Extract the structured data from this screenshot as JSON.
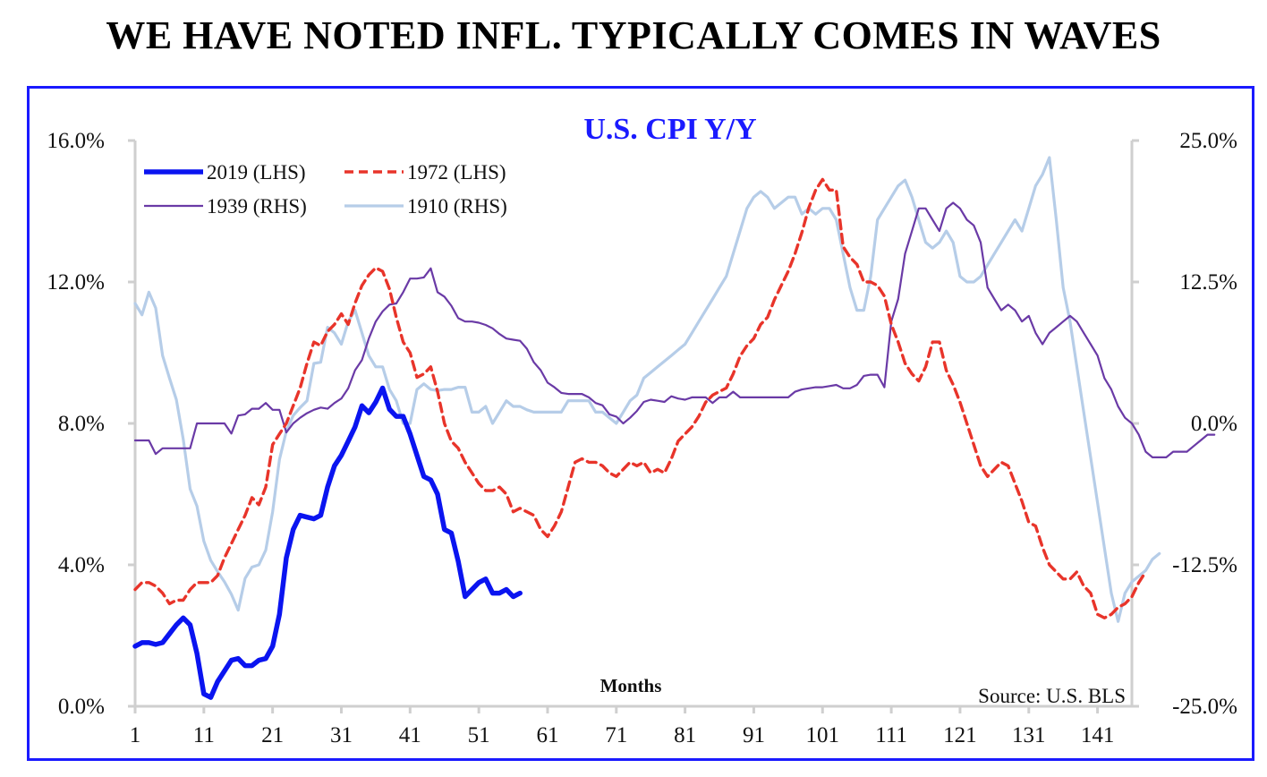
{
  "headline": "WE HAVE NOTED INFL. TYPICALLY COMES IN WAVES",
  "chart_data": {
    "type": "line",
    "title": "U.S. CPI Y/Y",
    "xlabel": "Months",
    "source": "Source: U.S. BLS",
    "x_ticks": [
      1,
      11,
      21,
      31,
      41,
      51,
      61,
      71,
      81,
      91,
      101,
      111,
      121,
      131,
      141
    ],
    "x_range": [
      1,
      146
    ],
    "left_axis": {
      "range": [
        0,
        16
      ],
      "ticks": [
        "0.0%",
        "4.0%",
        "8.0%",
        "12.0%",
        "16.0%"
      ],
      "tick_values": [
        0,
        4,
        8,
        12,
        16
      ]
    },
    "right_axis": {
      "range": [
        -25,
        25
      ],
      "ticks": [
        "-25.0%",
        "-12.5%",
        "0.0%",
        "12.5%",
        "25.0%"
      ],
      "tick_values": [
        -25,
        -12.5,
        0,
        12.5,
        25
      ]
    },
    "grid": false,
    "legend_placement": "top-left",
    "colors": {
      "s2019": "#0a14f0",
      "s1972": "#e8342a",
      "s1939": "#6a3aa6",
      "s1910": "#b6cde8",
      "frame": "#1a1aff",
      "title": "#1a1aff",
      "axis": "#cfcfcf"
    },
    "series": [
      {
        "name": "2019 (LHS)",
        "axis": "left",
        "style": "solid-thick",
        "start_x": 1,
        "values": [
          1.7,
          1.8,
          1.8,
          1.75,
          1.8,
          2.05,
          2.3,
          2.5,
          2.3,
          1.5,
          0.35,
          0.25,
          0.7,
          1.0,
          1.3,
          1.35,
          1.15,
          1.15,
          1.3,
          1.35,
          1.7,
          2.6,
          4.2,
          5.0,
          5.4,
          5.35,
          5.3,
          5.4,
          6.2,
          6.8,
          7.1,
          7.5,
          7.9,
          8.5,
          8.3,
          8.6,
          9.0,
          8.4,
          8.2,
          8.2,
          7.7,
          7.1,
          6.5,
          6.4,
          6.0,
          5.0,
          4.9,
          4.1,
          3.1,
          3.3,
          3.5,
          3.6,
          3.2,
          3.2,
          3.3,
          3.1,
          3.2
        ]
      },
      {
        "name": "1972 (LHS)",
        "axis": "left",
        "style": "dashed",
        "start_x": 1,
        "values": [
          3.3,
          3.5,
          3.5,
          3.4,
          3.2,
          2.9,
          3.0,
          3.0,
          3.3,
          3.5,
          3.5,
          3.5,
          3.7,
          4.2,
          4.6,
          5.0,
          5.4,
          5.9,
          5.7,
          6.2,
          7.4,
          7.7,
          8.0,
          8.5,
          9.0,
          9.7,
          10.3,
          10.2,
          10.6,
          10.8,
          11.1,
          10.8,
          11.4,
          11.9,
          12.2,
          12.4,
          12.3,
          11.8,
          11.0,
          10.3,
          10.0,
          9.3,
          9.4,
          9.6,
          8.9,
          8.0,
          7.5,
          7.3,
          6.9,
          6.6,
          6.3,
          6.1,
          6.1,
          6.2,
          6.0,
          5.5,
          5.6,
          5.5,
          5.4,
          5.0,
          4.8,
          5.1,
          5.5,
          6.2,
          6.9,
          7.0,
          6.9,
          6.9,
          6.8,
          6.6,
          6.5,
          6.7,
          6.9,
          6.8,
          6.9,
          6.6,
          6.7,
          6.6,
          7.0,
          7.5,
          7.7,
          7.9,
          8.2,
          8.6,
          8.8,
          8.9,
          9.0,
          9.4,
          9.9,
          10.2,
          10.4,
          10.8,
          11.0,
          11.5,
          11.9,
          12.3,
          12.8,
          13.4,
          14.1,
          14.6,
          14.9,
          14.6,
          14.6,
          13.0,
          12.7,
          12.5,
          12.0,
          12.0,
          11.9,
          11.6,
          10.8,
          10.3,
          9.7,
          9.4,
          9.2,
          9.6,
          10.3,
          10.3,
          9.5,
          9.1,
          8.6,
          8.0,
          7.4,
          6.8,
          6.5,
          6.7,
          6.9,
          6.8,
          6.3,
          5.8,
          5.2,
          5.1,
          4.5,
          4.0,
          3.8,
          3.6,
          3.6,
          3.8,
          3.4,
          3.2,
          2.6,
          2.5,
          2.6,
          2.8,
          2.9,
          3.1,
          3.5,
          3.8
        ]
      },
      {
        "name": "1939 (RHS)",
        "axis": "right",
        "style": "solid-thin",
        "start_x": 1,
        "values": [
          -1.5,
          -1.5,
          -1.5,
          -2.7,
          -2.2,
          -2.2,
          -2.2,
          -2.2,
          -2.2,
          0,
          0,
          0,
          0,
          0,
          -0.9,
          0.7,
          0.8,
          1.3,
          1.3,
          1.8,
          1.2,
          1.2,
          -0.8,
          0,
          0.5,
          0.9,
          1.2,
          1.4,
          1.3,
          1.8,
          2.2,
          3.1,
          4.7,
          5.6,
          7.5,
          9.0,
          9.9,
          10.5,
          10.6,
          11.6,
          12.8,
          12.8,
          12.9,
          13.7,
          11.6,
          11.2,
          10.4,
          9.3,
          9.0,
          9.0,
          8.9,
          8.7,
          8.4,
          7.9,
          7.5,
          7.4,
          7.3,
          6.6,
          5.4,
          4.7,
          3.6,
          3.2,
          2.7,
          2.6,
          2.6,
          2.6,
          2.3,
          1.8,
          1.6,
          0.8,
          0.6,
          0.0,
          0.5,
          1.1,
          1.9,
          2.1,
          2.0,
          1.9,
          2.4,
          2.2,
          2.1,
          2.3,
          2.3,
          2.3,
          1.8,
          2.3,
          2.3,
          2.8,
          2.3,
          2.3,
          2.3,
          2.3,
          2.3,
          2.3,
          2.3,
          2.3,
          2.8,
          3.0,
          3.1,
          3.2,
          3.2,
          3.3,
          3.4,
          3.1,
          3.1,
          3.4,
          4.2,
          4.3,
          4.3,
          3.2,
          9.0,
          11.0,
          15.0,
          17.0,
          19.0,
          19.0,
          18.0,
          17.0,
          19.0,
          19.5,
          19.0,
          18.0,
          17.5,
          16.0,
          12.0,
          11.0,
          10.0,
          10.5,
          10.0,
          9.0,
          9.5,
          8.0,
          7.0,
          8.0,
          8.5,
          9.0,
          9.5,
          9.0,
          8.0,
          7.0,
          6.0,
          4.0,
          3.0,
          1.5,
          0.5,
          0.0,
          -1.0,
          -2.5,
          -3.0,
          -3.0,
          -3.0,
          -2.5,
          -2.5,
          -2.5,
          -2.0,
          -1.5,
          -1.0,
          -1.0
        ]
      },
      {
        "name": "1910 (RHS)",
        "axis": "right",
        "style": "solid-light",
        "start_x": 1,
        "values": [
          10.6,
          9.6,
          11.6,
          10.2,
          6.0,
          4.0,
          2.1,
          -1.4,
          -5.8,
          -7.3,
          -10.4,
          -12.1,
          -13.1,
          -14.0,
          -15.1,
          -16.5,
          -13.7,
          -12.7,
          -12.5,
          -11.2,
          -7.8,
          -3.2,
          -0.7,
          0.7,
          1.4,
          2.0,
          5.3,
          5.4,
          8.5,
          8.0,
          7.0,
          9.0,
          10.0,
          8.0,
          6.0,
          5.0,
          5.0,
          3.0,
          2.0,
          0.0,
          0.0,
          3.0,
          3.5,
          3.0,
          2.9,
          3.0,
          3.0,
          3.2,
          3.2,
          1.0,
          1.0,
          1.5,
          0.0,
          1.0,
          2.0,
          1.5,
          1.5,
          1.2,
          1.0,
          1.0,
          1.0,
          1.0,
          1.0,
          2.0,
          2.0,
          2.0,
          2.0,
          1.0,
          1.0,
          0.5,
          0.0,
          1.0,
          2.0,
          2.5,
          4.0,
          4.5,
          5.0,
          5.5,
          6.0,
          6.5,
          7.0,
          8.0,
          9.0,
          10.0,
          11.0,
          12.0,
          13.0,
          15.0,
          17.0,
          19.0,
          20.0,
          20.5,
          20.0,
          19.0,
          19.5,
          20.0,
          20.0,
          18.5,
          19.0,
          18.5,
          19.0,
          19.0,
          18.0,
          15.0,
          12.0,
          10.0,
          10.0,
          13.0,
          18.0,
          19.0,
          20.0,
          21.0,
          21.5,
          20.0,
          18.0,
          16.0,
          15.5,
          16.0,
          17.0,
          16.0,
          13.0,
          12.5,
          12.5,
          13.0,
          14.0,
          15.0,
          16.0,
          17.0,
          18.0,
          17.0,
          19.0,
          21.0,
          22.0,
          23.5,
          18.0,
          12.0,
          9.0,
          5.0,
          1.0,
          -3.0,
          -7.0,
          -11.0,
          -15.0,
          -17.5,
          -15.0,
          -14.0,
          -13.5,
          -13.0,
          -12.0,
          -11.5
        ]
      }
    ]
  }
}
